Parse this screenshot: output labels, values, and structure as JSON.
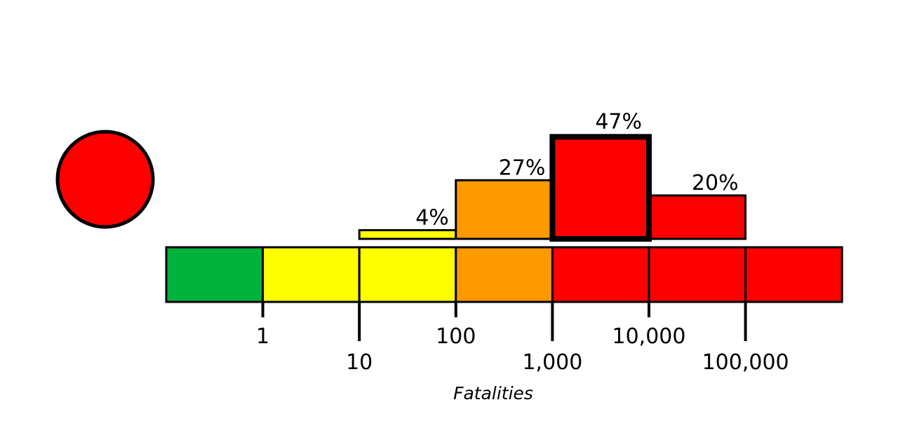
{
  "chart_data": {
    "type": "bar",
    "xscale": "log",
    "xlabel": "Fatalities",
    "tick_labels": [
      "1",
      "10",
      "100",
      "1,000",
      "10,000",
      "100,000"
    ],
    "tick_values": [
      1,
      10,
      100,
      1000,
      10000,
      100000
    ],
    "alert_level": {
      "color": "#ff0000"
    },
    "scale_bins": [
      {
        "from": 0,
        "to": 1,
        "color": "#00b33c"
      },
      {
        "from": 1,
        "to": 10,
        "color": "#ffff00"
      },
      {
        "from": 10,
        "to": 100,
        "color": "#ffff00"
      },
      {
        "from": 100,
        "to": 1000,
        "color": "#ff9900"
      },
      {
        "from": 1000,
        "to": 10000,
        "color": "#ff0000"
      },
      {
        "from": 10000,
        "to": 100000,
        "color": "#ff0000"
      },
      {
        "from": 100000,
        "to": 1000000,
        "color": "#ff0000"
      }
    ],
    "bars": [
      {
        "from": 10,
        "to": 100,
        "value": 4,
        "label": "4%",
        "color": "#ffff00",
        "highlighted": false
      },
      {
        "from": 100,
        "to": 1000,
        "value": 27,
        "label": "27%",
        "color": "#ff9900",
        "highlighted": false
      },
      {
        "from": 1000,
        "to": 10000,
        "value": 47,
        "label": "47%",
        "color": "#ff0000",
        "highlighted": true
      },
      {
        "from": 10000,
        "to": 100000,
        "value": 20,
        "label": "20%",
        "color": "#ff0000",
        "highlighted": false
      }
    ]
  }
}
